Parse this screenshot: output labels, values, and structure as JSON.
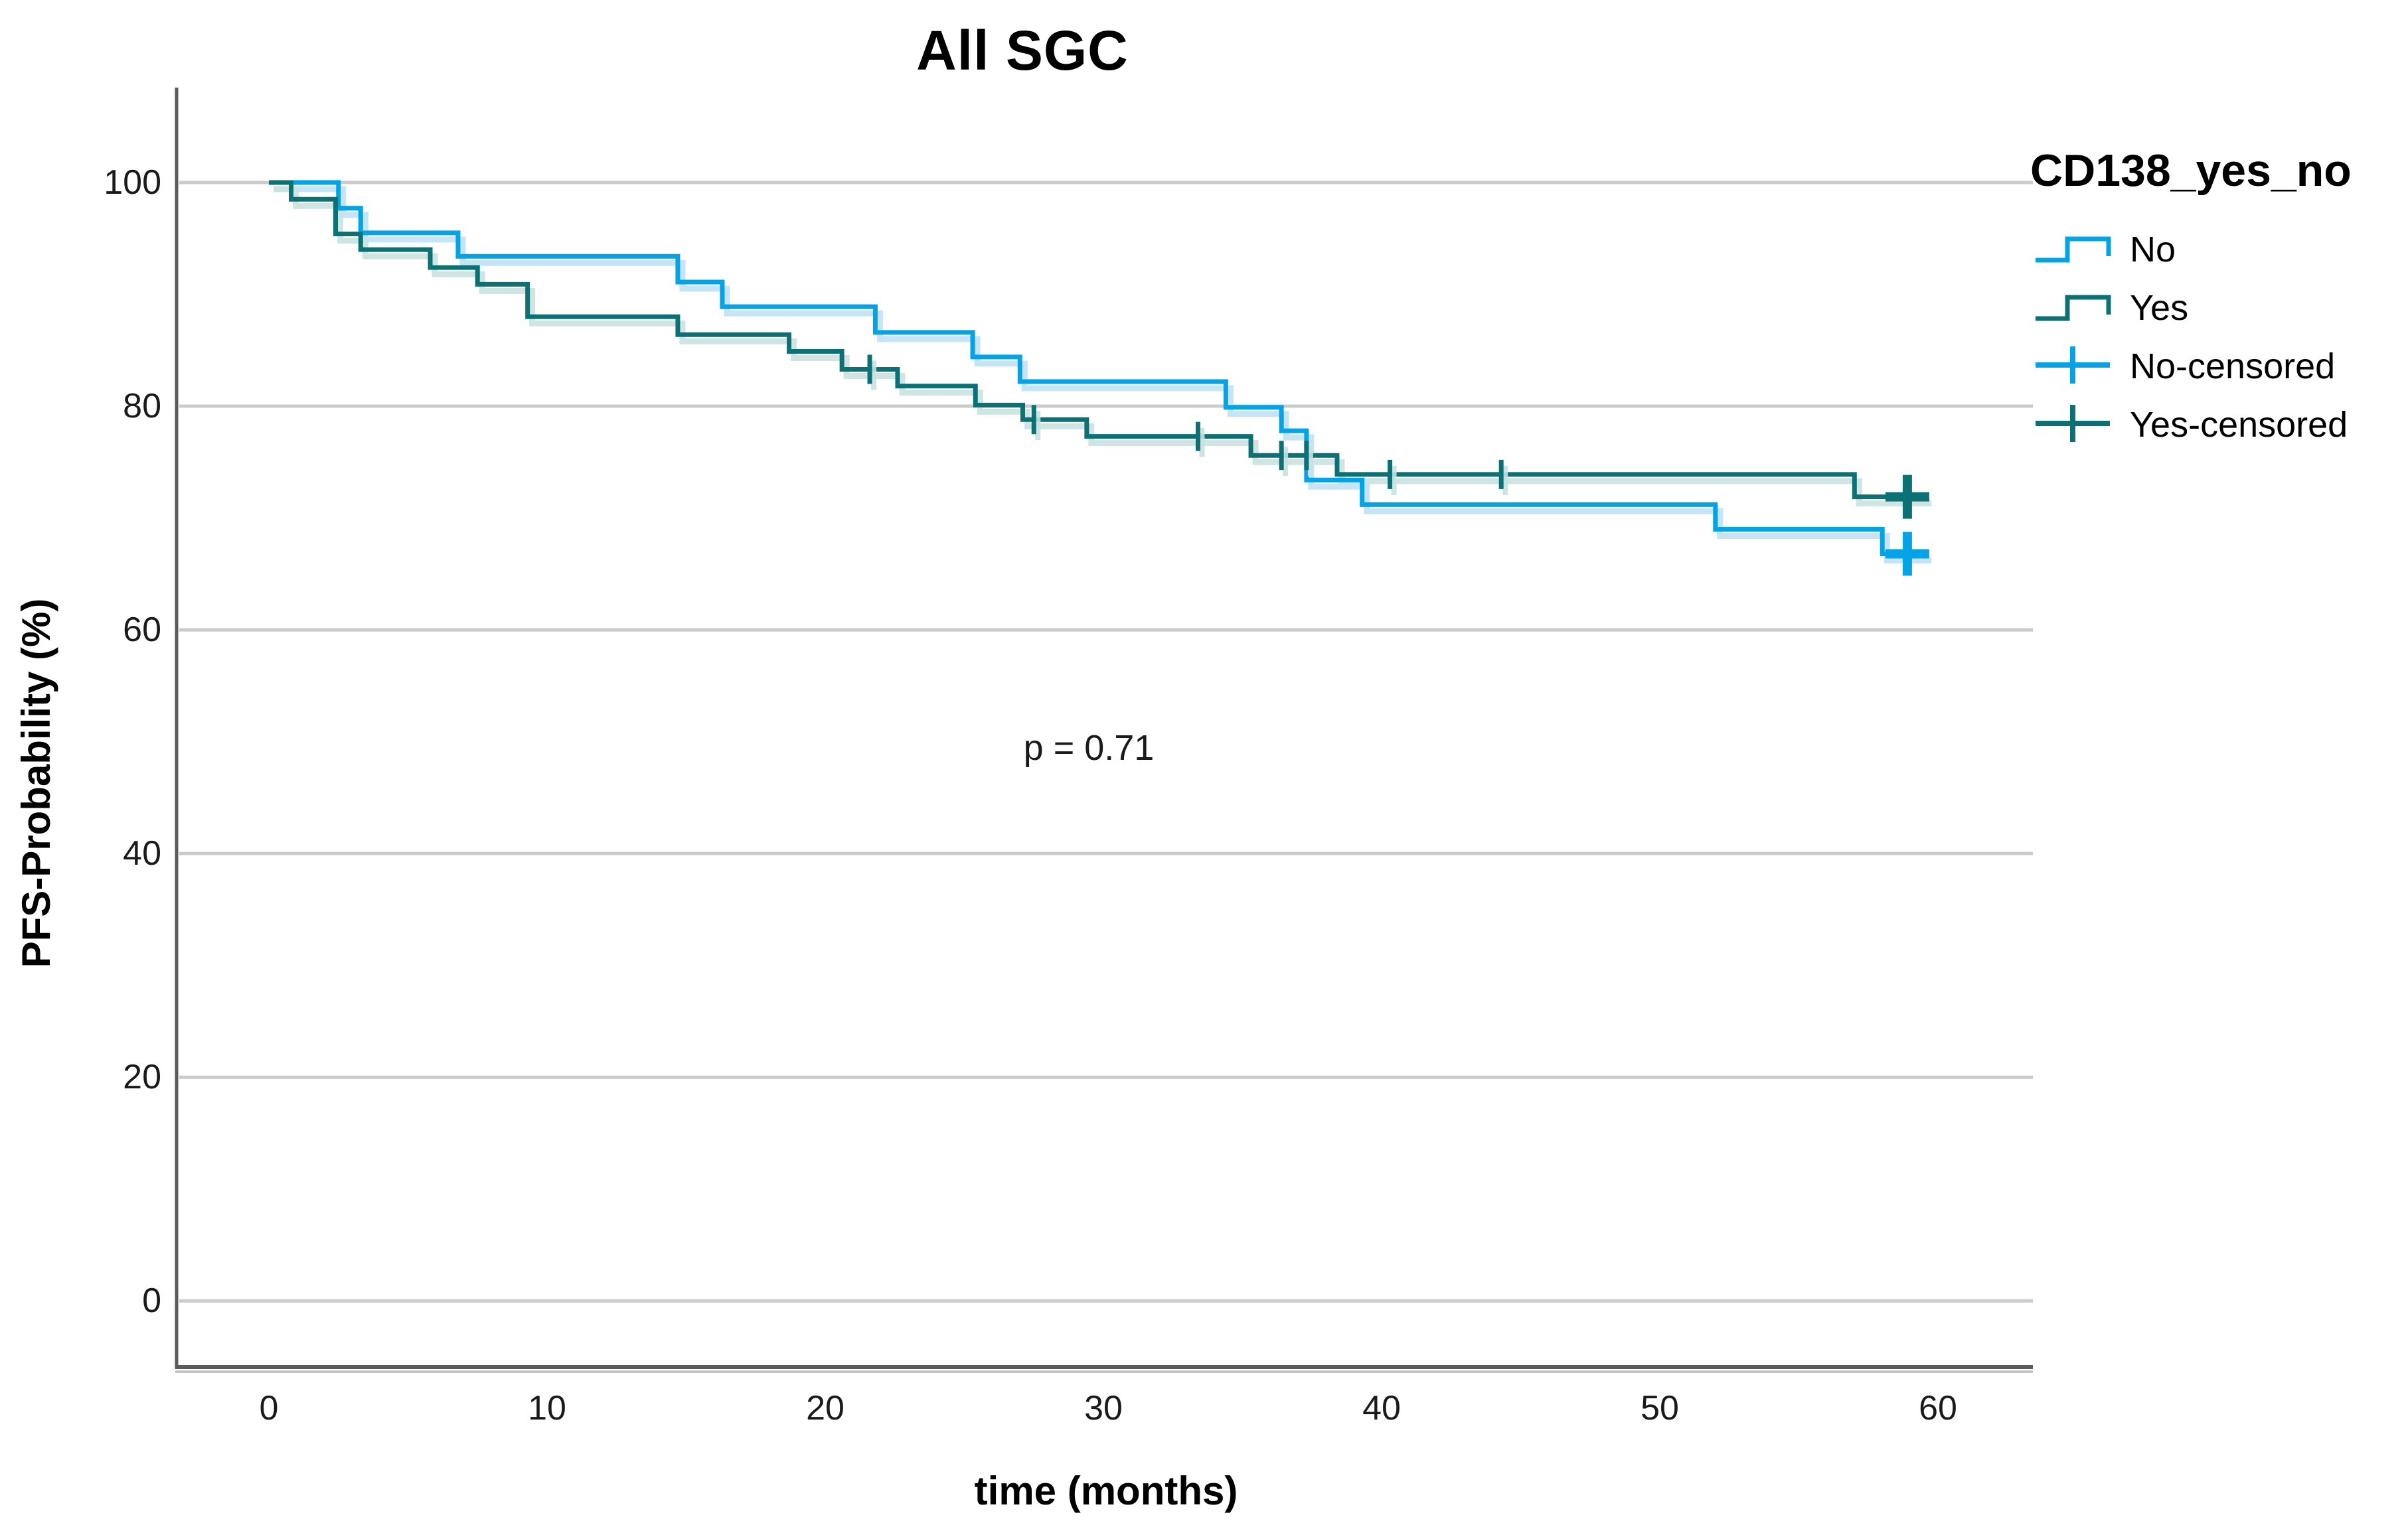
{
  "header": {
    "title": "All SGC"
  },
  "annotation": {
    "text": "p = 0.71"
  },
  "axes": {
    "x": {
      "title": "time (months)",
      "ticks": [
        0,
        10,
        20,
        30,
        40,
        50,
        60
      ]
    },
    "y": {
      "title": "PFS-Probability (%)",
      "ticks": [
        100,
        80,
        60,
        40,
        20,
        0
      ]
    }
  },
  "legend": {
    "title": "CD138_yes_no",
    "items": [
      {
        "label": "No",
        "symbol": "step",
        "color": "#03a3e6"
      },
      {
        "label": "Yes",
        "symbol": "step",
        "color": "#0b7175"
      },
      {
        "label": "No-censored",
        "symbol": "plus",
        "color": "#03a3e6"
      },
      {
        "label": "Yes-censored",
        "symbol": "plus",
        "color": "#0b7175"
      }
    ]
  },
  "colors": {
    "no_line": "#03a3e6",
    "no_shadow": "#bfe2f5",
    "yes_line": "#0b7175",
    "yes_shadow": "#c9e2e1",
    "gridline": "#cbcbcb",
    "axis": "#5b5b5b",
    "axis_under": "#c4c4c4",
    "text": "#1a1a1a"
  },
  "chart_data": {
    "type": "line",
    "subtype": "kaplan-meier-step",
    "title": "All SGC",
    "xlabel": "time (months)",
    "ylabel": "PFS-Probability (%)",
    "xlim": [
      -3.5,
      63.5
    ],
    "ylim": [
      -6,
      108
    ],
    "grid": "horizontal",
    "legend_position": "right",
    "p_value": "p = 0.71",
    "series": [
      {
        "name": "No",
        "group": "CD138_yes_no = No",
        "color": "#03a3e6",
        "shadow_color": "#bfe2f5",
        "levels_time_percent": [
          [
            0,
            100
          ],
          [
            2.5,
            97.7
          ],
          [
            3.3,
            95.5
          ],
          [
            6.8,
            93.4
          ],
          [
            14.7,
            91.1
          ],
          [
            16.3,
            88.9
          ],
          [
            21.8,
            86.6
          ],
          [
            25.3,
            84.4
          ],
          [
            27.0,
            82.2
          ],
          [
            34.4,
            79.9
          ],
          [
            36.4,
            77.8
          ],
          [
            37.3,
            73.4
          ],
          [
            39.3,
            71.2
          ],
          [
            52.0,
            69.0
          ],
          [
            58.0,
            66.8
          ]
        ],
        "end_time": 59.6,
        "censored_ticks": [],
        "end_censor": [
          58.9,
          66.8
        ]
      },
      {
        "name": "Yes",
        "group": "CD138_yes_no = Yes",
        "color": "#0b7175",
        "shadow_color": "#c9e2e1",
        "levels_time_percent": [
          [
            0,
            100
          ],
          [
            0.8,
            98.5
          ],
          [
            2.4,
            95.4
          ],
          [
            3.3,
            94.0
          ],
          [
            5.8,
            92.4
          ],
          [
            7.5,
            90.9
          ],
          [
            9.3,
            88.0
          ],
          [
            14.7,
            86.4
          ],
          [
            18.7,
            84.9
          ],
          [
            20.6,
            83.3
          ],
          [
            22.6,
            81.8
          ],
          [
            25.4,
            80.1
          ],
          [
            27.1,
            78.8
          ],
          [
            29.4,
            77.3
          ],
          [
            35.3,
            75.6
          ],
          [
            38.4,
            73.9
          ],
          [
            57.0,
            71.9
          ]
        ],
        "end_time": 59.6,
        "censored_ticks": [
          [
            21.6,
            83.3
          ],
          [
            27.5,
            78.8
          ],
          [
            33.4,
            77.3
          ],
          [
            36.4,
            75.6
          ],
          [
            37.3,
            75.6
          ],
          [
            40.3,
            73.9
          ],
          [
            44.3,
            73.9
          ]
        ],
        "end_censor": [
          58.9,
          71.9
        ]
      }
    ]
  }
}
